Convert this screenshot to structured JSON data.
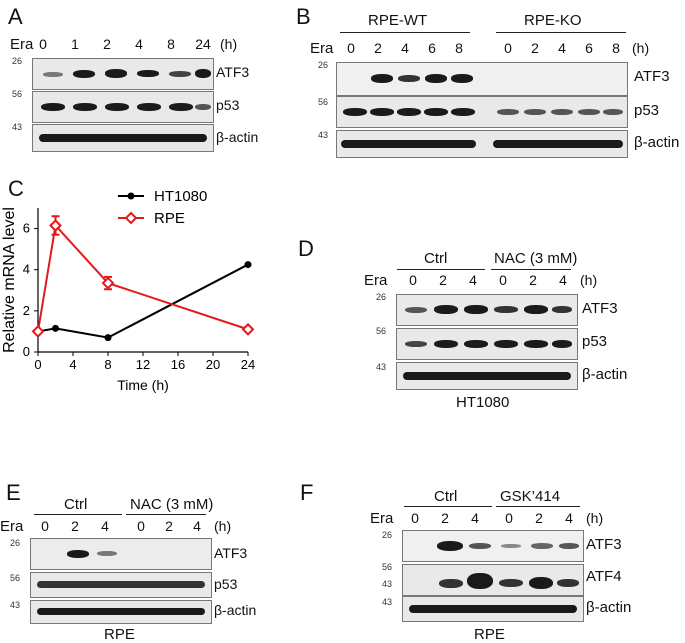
{
  "panels": {
    "A": {
      "letter": "A",
      "treat": "Era",
      "lanes": [
        "0",
        "1",
        "2",
        "4",
        "8",
        "24"
      ],
      "unit": "(h)",
      "rows": [
        {
          "label": "ATF3",
          "mw": "26"
        },
        {
          "label": "p53",
          "mw": "56"
        },
        {
          "label": "β-actin",
          "mw": "43"
        }
      ]
    },
    "B": {
      "letter": "B",
      "groups": [
        "RPE-WT",
        "RPE-KO"
      ],
      "treat": "Era",
      "lanes": [
        "0",
        "2",
        "4",
        "6",
        "8",
        "0",
        "2",
        "4",
        "6",
        "8"
      ],
      "unit": "(h)",
      "rows": [
        {
          "label": "ATF3",
          "mw": "26"
        },
        {
          "label": "p53",
          "mw": "56"
        },
        {
          "label": "β-actin",
          "mw": "43"
        }
      ]
    },
    "C": {
      "letter": "C"
    },
    "D": {
      "letter": "D",
      "groups": [
        "Ctrl",
        "NAC (3 mM)"
      ],
      "treat": "Era",
      "lanes": [
        "0",
        "2",
        "4",
        "0",
        "2",
        "4"
      ],
      "unit": "(h)",
      "caption": "HT1080",
      "rows": [
        {
          "label": "ATF3",
          "mw": "26"
        },
        {
          "label": "p53",
          "mw": "56"
        },
        {
          "label": "β-actin",
          "mw": "43"
        }
      ]
    },
    "E": {
      "letter": "E",
      "groups": [
        "Ctrl",
        "NAC (3 mM)"
      ],
      "treat": "Era",
      "lanes": [
        "0",
        "2",
        "4",
        "0",
        "2",
        "4"
      ],
      "unit": "(h)",
      "caption": "RPE",
      "rows": [
        {
          "label": "ATF3",
          "mw": "26"
        },
        {
          "label": "p53",
          "mw": "56"
        },
        {
          "label": "β-actin",
          "mw": "43"
        }
      ]
    },
    "F": {
      "letter": "F",
      "groups": [
        "Ctrl",
        "GSK’414"
      ],
      "treat": "Era",
      "lanes": [
        "0",
        "2",
        "4",
        "0",
        "2",
        "4"
      ],
      "unit": "(h)",
      "caption": "RPE",
      "rows": [
        {
          "label": "ATF3",
          "mw": "26"
        },
        {
          "label": "ATF4",
          "mw": "56",
          "mw2": "43"
        },
        {
          "label": "β-actin",
          "mw": "43"
        }
      ]
    }
  },
  "chart_data": {
    "type": "line",
    "xlabel": "Time (h)",
    "ylabel": "Relative mRNA level",
    "xlim": [
      0,
      24
    ],
    "ylim": [
      0,
      7
    ],
    "xticks": [
      0,
      4,
      8,
      12,
      16,
      20,
      24
    ],
    "yticks": [
      0,
      2,
      4,
      6
    ],
    "legend": "top-right",
    "series": [
      {
        "name": "HT1080",
        "color": "#000000",
        "marker": "circle",
        "x": [
          0,
          2,
          8,
          24
        ],
        "y": [
          1.0,
          1.15,
          0.7,
          4.25
        ]
      },
      {
        "name": "RPE",
        "color": "#e3191c",
        "marker": "diamond-open",
        "x": [
          0,
          2,
          8,
          24
        ],
        "y": [
          1.0,
          6.15,
          3.35,
          1.1
        ],
        "err": [
          0,
          0.45,
          0.3,
          0
        ]
      }
    ]
  }
}
